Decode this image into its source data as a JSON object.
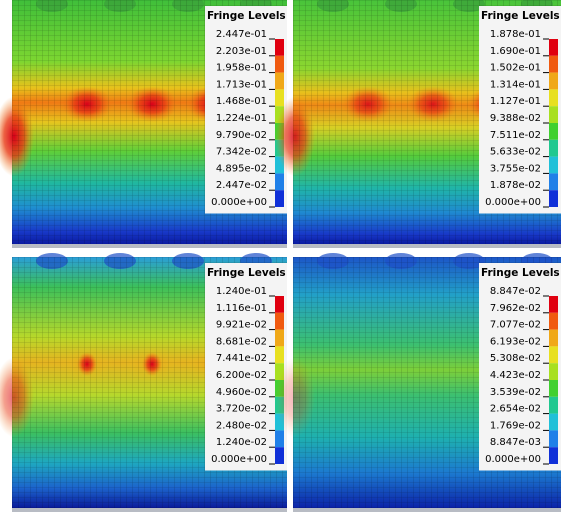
{
  "panels": [
    {
      "legend_title": "Fringe Levels",
      "levels": [
        "2.447e-01",
        "2.203e-01",
        "1.958e-01",
        "1.713e-01",
        "1.468e-01",
        "1.224e-01",
        "9.790e-02",
        "7.342e-02",
        "4.895e-02",
        "2.447e-02",
        "0.000e+00"
      ]
    },
    {
      "legend_title": "Fringe Levels",
      "levels": [
        "1.878e-01",
        "1.690e-01",
        "1.502e-01",
        "1.314e-01",
        "1.127e-01",
        "9.388e-02",
        "7.511e-02",
        "5.633e-02",
        "3.755e-02",
        "1.878e-02",
        "0.000e+00"
      ]
    },
    {
      "legend_title": "Fringe Levels",
      "levels": [
        "1.240e-01",
        "1.116e-01",
        "9.921e-02",
        "8.681e-02",
        "7.441e-02",
        "6.200e-02",
        "4.960e-02",
        "3.720e-02",
        "2.480e-02",
        "1.240e-02",
        "0.000e+00"
      ]
    },
    {
      "legend_title": "Fringe Levels",
      "levels": [
        "8.847e-02",
        "7.962e-02",
        "7.077e-02",
        "6.193e-02",
        "5.308e-02",
        "4.423e-02",
        "3.539e-02",
        "2.654e-02",
        "1.769e-02",
        "8.847e-03",
        "0.000e+00"
      ]
    }
  ]
}
